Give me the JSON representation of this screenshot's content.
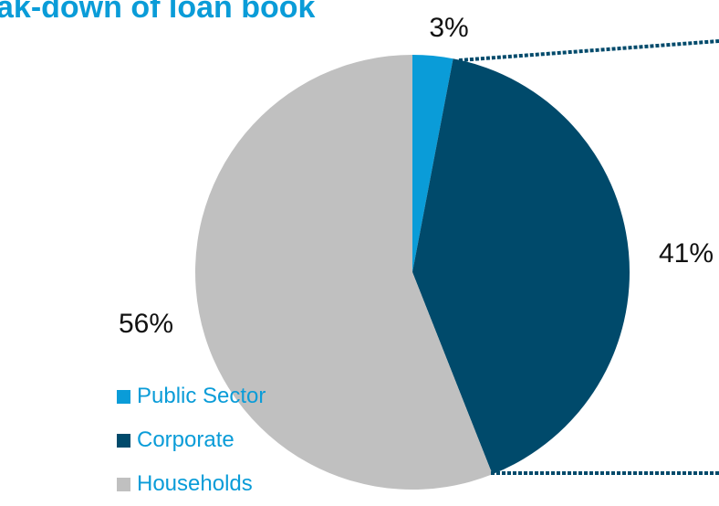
{
  "chart_data": {
    "type": "pie",
    "title": "ak-down of loan book",
    "categories": [
      "Public Sector",
      "Corporate",
      "Households"
    ],
    "values": [
      3,
      41,
      56
    ],
    "labels": [
      "3%",
      "41%",
      "56%"
    ],
    "colors": [
      "#0a9cd8",
      "#004a6b",
      "#c0c0c0"
    ],
    "start_angle": "12 o'clock",
    "direction": "clockwise",
    "legend_position": "bottom-left"
  }
}
